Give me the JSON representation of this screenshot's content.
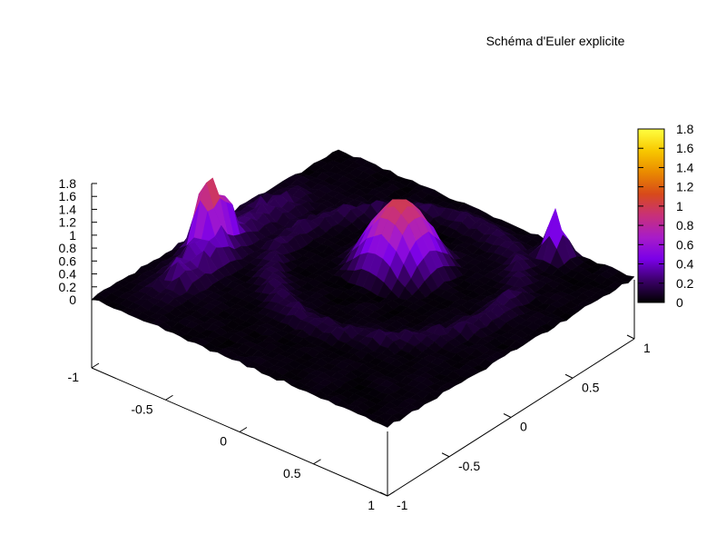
{
  "chart_data": {
    "type": "surface",
    "title": "Schéma d'Euler explicite",
    "xlabel": "",
    "ylabel": "",
    "zlabel": "",
    "x_range": [
      -1,
      1
    ],
    "y_range": [
      -1,
      1
    ],
    "z_range": [
      0,
      1.8
    ],
    "x_ticks": [
      "-1",
      "-0.5",
      "0",
      "0.5",
      "1"
    ],
    "x_tick_values": [
      -1,
      -0.5,
      0,
      0.5,
      1
    ],
    "y_ticks": [
      "-1",
      "-0.5",
      "0",
      "0.5",
      "1"
    ],
    "y_tick_values": [
      -1,
      -0.5,
      0,
      0.5,
      1
    ],
    "z_ticks": [
      "0",
      "0.2",
      "0.4",
      "0.6",
      "0.8",
      "1",
      "1.2",
      "1.4",
      "1.6",
      "1.8"
    ],
    "z_tick_values": [
      0,
      0.2,
      0.4,
      0.6,
      0.8,
      1,
      1.2,
      1.4,
      1.6,
      1.8
    ],
    "colorbar": {
      "range": [
        0,
        1.8
      ],
      "ticks": [
        "0",
        "0.2",
        "0.4",
        "0.6",
        "0.8",
        "1",
        "1.2",
        "1.4",
        "1.6",
        "1.8"
      ],
      "tick_values": [
        0,
        0.2,
        0.4,
        0.6,
        0.8,
        1,
        1.2,
        1.4,
        1.6,
        1.8
      ],
      "colors": [
        "#000000",
        "#3a0068",
        "#7a00e8",
        "#a81cc8",
        "#c8307a",
        "#d84a1a",
        "#ea8a00",
        "#f8c800",
        "#ffff40"
      ]
    },
    "features": [
      {
        "label": "central dome",
        "x": 0.0,
        "y": 0.3,
        "peak": 1.0
      },
      {
        "label": "left spike",
        "x": -0.85,
        "y": -0.2,
        "peak": 1.3
      },
      {
        "label": "right spike",
        "x": 0.55,
        "y": 0.9,
        "peak": 0.9
      }
    ],
    "grid": false
  }
}
